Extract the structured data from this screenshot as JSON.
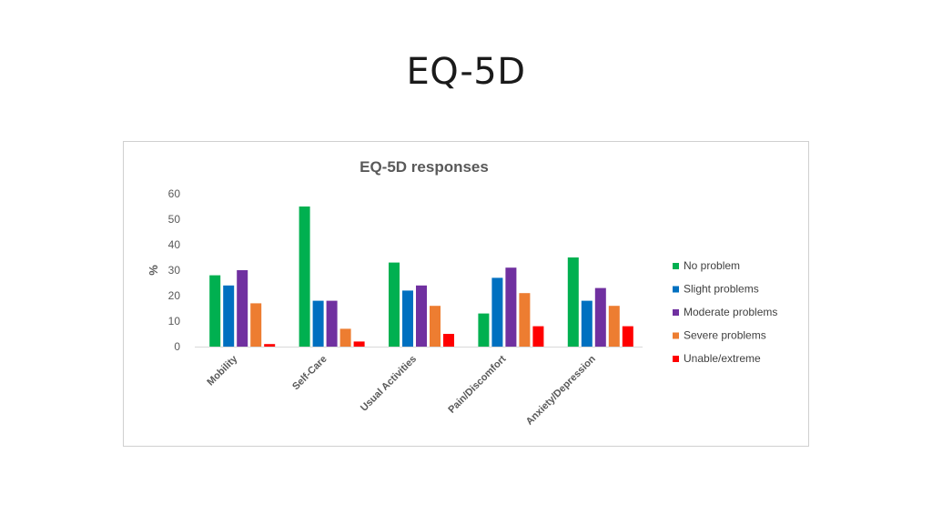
{
  "slide": {
    "title": "EQ-5D"
  },
  "chart_data": {
    "type": "bar",
    "title": "EQ-5D responses",
    "xlabel": "",
    "ylabel": "%",
    "ylim": [
      0,
      60
    ],
    "yticks": [
      0,
      10,
      20,
      30,
      40,
      50,
      60
    ],
    "grid": false,
    "legend_position": "right",
    "categories": [
      "Mobility",
      "Self-Care",
      "Usual Activities",
      "Pain/Discomfort",
      "Anxiety/Depression"
    ],
    "series": [
      {
        "name": "No problem",
        "color": "#00b050",
        "values": [
          28,
          55,
          33,
          13,
          35
        ]
      },
      {
        "name": "Slight problems",
        "color": "#0070c0",
        "values": [
          24,
          18,
          22,
          27,
          18
        ]
      },
      {
        "name": "Moderate problems",
        "color": "#7030a0",
        "values": [
          30,
          18,
          24,
          31,
          23
        ]
      },
      {
        "name": "Severe problems",
        "color": "#ed7d31",
        "values": [
          17,
          7,
          16,
          21,
          16
        ]
      },
      {
        "name": "Unable/extreme",
        "color": "#ff0000",
        "values": [
          1,
          2,
          5,
          8,
          8
        ]
      }
    ]
  }
}
